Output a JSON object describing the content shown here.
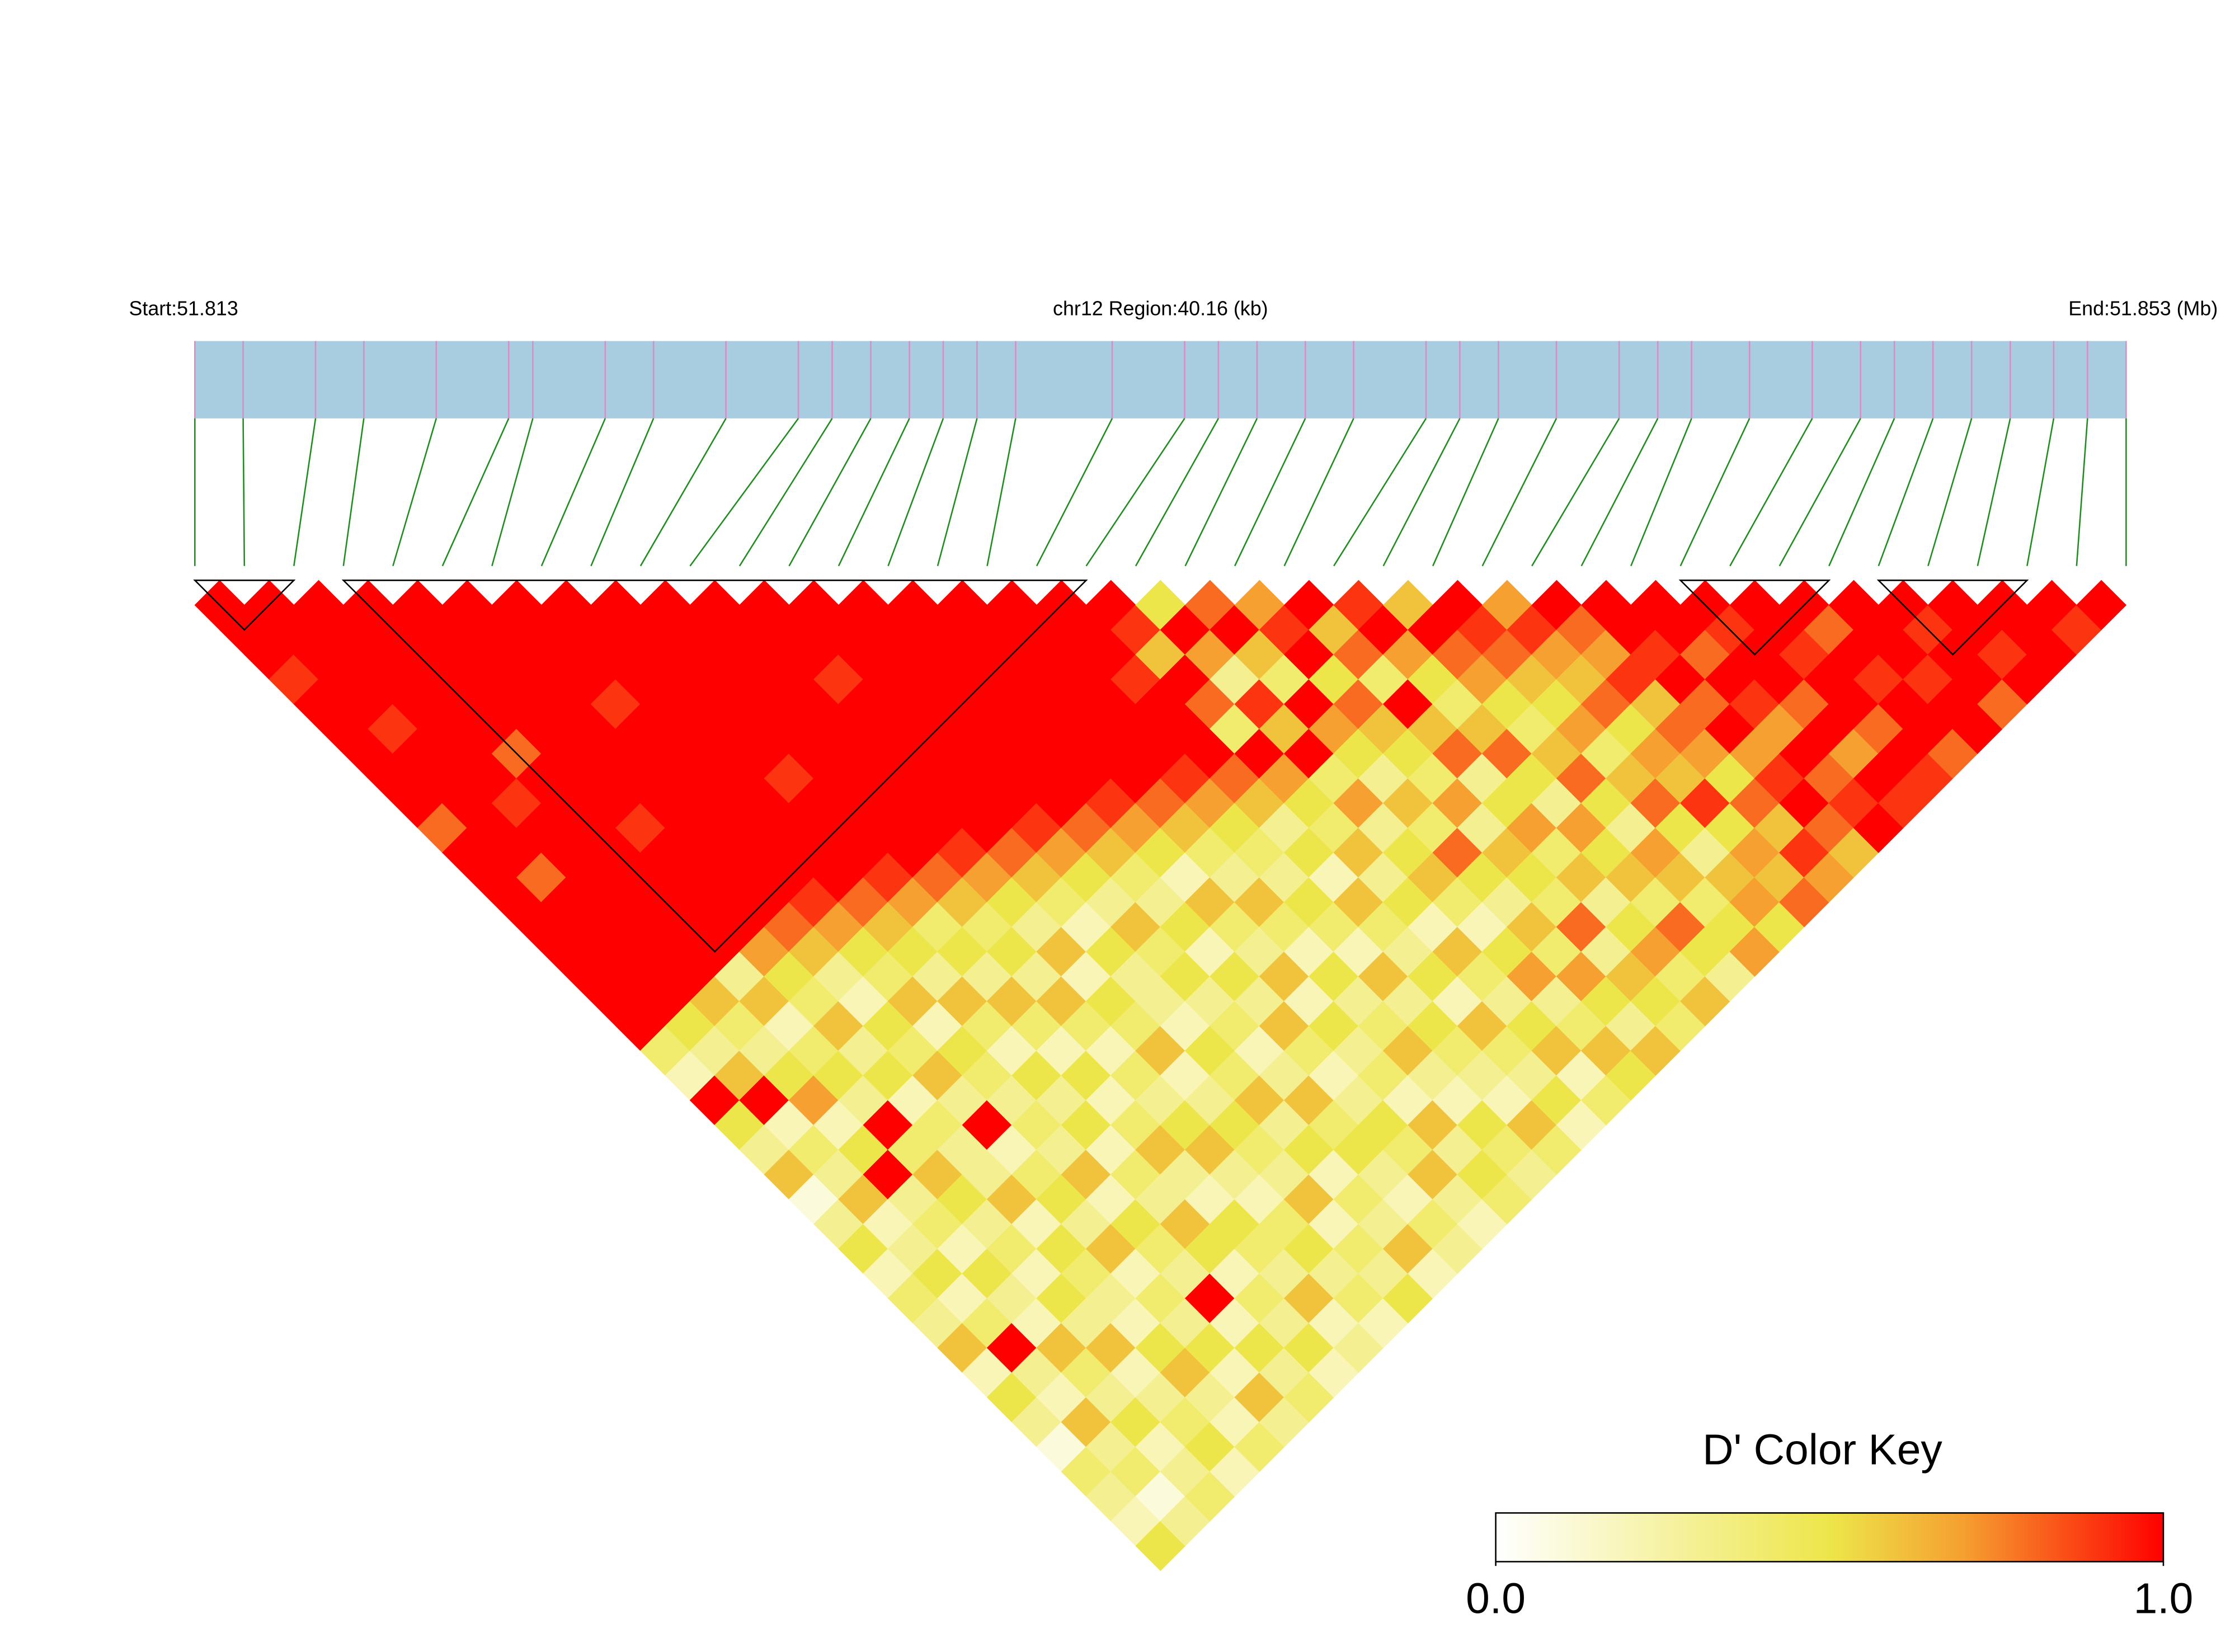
{
  "chart_data": {
    "type": "ld_heatmap",
    "start_label": "Start:51.813",
    "region_label": "chr12 Region:40.16 (kb)",
    "end_label": "End:51.853 (Mb)",
    "xlim": [
      51.813,
      51.853
    ],
    "bar_color": "#a8cde0",
    "marker_color": "#d98cc8",
    "link_color": "#1e8c1e",
    "block_color": "#000000",
    "positions": [
      51.813,
      51.814,
      51.8155,
      51.8165,
      51.818,
      51.8195,
      51.82,
      51.8215,
      51.8225,
      51.824,
      51.8255,
      51.8262,
      51.827,
      51.8278,
      51.8285,
      51.8292,
      51.83,
      51.832,
      51.8335,
      51.8342,
      51.835,
      51.836,
      51.837,
      51.8385,
      51.8392,
      51.84,
      51.8412,
      51.8425,
      51.8433,
      51.844,
      51.8452,
      51.8465,
      51.8475,
      51.8482,
      51.849,
      51.8498,
      51.8506,
      51.8515,
      51.8522,
      51.853
    ],
    "blocks": [
      [
        0,
        2
      ],
      [
        3,
        18
      ],
      [
        30,
        33
      ],
      [
        34,
        37
      ]
    ],
    "dprime": [
      [
        1,
        1,
        1,
        0.9,
        1,
        1,
        1,
        1,
        1,
        0.8,
        1,
        1,
        1,
        1,
        1,
        1,
        1,
        1,
        0.4,
        0.2,
        1,
        0.5,
        0.3,
        0.6,
        0.1,
        0.3,
        0.5,
        0.2,
        0.4,
        0.3,
        0.6,
        0.2,
        0.5,
        0.3,
        0.1,
        0.4,
        0.3,
        0.2,
        0.5
      ],
      [
        1,
        1,
        1,
        1,
        1,
        0.9,
        1,
        1,
        1,
        1,
        1,
        0.8,
        1,
        1,
        1,
        1,
        1,
        0.5,
        0.3,
        0.6,
        1,
        0.2,
        0.4,
        0.3,
        0.6,
        0.2,
        0.3,
        0.5,
        0.2,
        0.4,
        1,
        0.3,
        0.2,
        0.6,
        0.3,
        0.4,
        0.1,
        0.3
      ],
      [
        1,
        1,
        1,
        1,
        1,
        1,
        1,
        1,
        0.9,
        1,
        1,
        1,
        1,
        1,
        1,
        1,
        0.6,
        0.4,
        0.3,
        0.5,
        0.7,
        0.2,
        0.5,
        1,
        0.3,
        0.4,
        0.2,
        0.5,
        0.3,
        0.2,
        0.6,
        0.4,
        0.3,
        0.5,
        0.2,
        0.3,
        0.4
      ],
      [
        1,
        1,
        1,
        1,
        1,
        1,
        0.8,
        1,
        1,
        1,
        1,
        1,
        1,
        1,
        1,
        0.3,
        0.6,
        0.2,
        0.4,
        0.5,
        0.3,
        1,
        0.4,
        0.6,
        0.5,
        0.3,
        0.4,
        0.2,
        0.5,
        0.3,
        0.6,
        0.2,
        0.3,
        0.4,
        0.5,
        0.2
      ],
      [
        1,
        1,
        1,
        1,
        1,
        1,
        1,
        1,
        1,
        0.9,
        1,
        1,
        1,
        1,
        0.7,
        0.5,
        0.4,
        0.6,
        0.3,
        0.5,
        0.2,
        0.4,
        0.3,
        0.3,
        0.6,
        0.2,
        0.5,
        0.4,
        0.3,
        0.2,
        0.5,
        0.6,
        0.3,
        0.2,
        0.4
      ],
      [
        1,
        1,
        1,
        1,
        1,
        1,
        1,
        1,
        1,
        1,
        1,
        1,
        1,
        0.8,
        0.6,
        0.3,
        0.2,
        0.5,
        0.4,
        0.6,
        0.3,
        1,
        0.2,
        0.4,
        0.5,
        0.3,
        0.6,
        0.2,
        0.4,
        0.3,
        0.5,
        0.2,
        0.6,
        0.3
      ],
      [
        1,
        1,
        1,
        1,
        0.9,
        1,
        1,
        1,
        1,
        1,
        1,
        1,
        0.9,
        0.7,
        0.5,
        0.4,
        0.6,
        0.2,
        0.5,
        0.4,
        0.3,
        0.4,
        0.3,
        0.6,
        0.2,
        0.5,
        0.4,
        0.3,
        1,
        0.2,
        0.5,
        0.3,
        0.4
      ],
      [
        1,
        1,
        1,
        1,
        1,
        1,
        1,
        1,
        1,
        1,
        1,
        1,
        0.8,
        0.6,
        0.5,
        0.3,
        0.6,
        0.4,
        0.2,
        0.5,
        0.3,
        0.5,
        0.2,
        0.4,
        0.3,
        0.6,
        0.5,
        0.2,
        0.4,
        0.3,
        0.5,
        0.2
      ],
      [
        1,
        1,
        1,
        1,
        1,
        1,
        1,
        0.9,
        1,
        1,
        1,
        0.9,
        0.7,
        0.4,
        0.5,
        0.3,
        0.6,
        0.4,
        0.2,
        0.5,
        0.2,
        0.4,
        0.6,
        0.3,
        0.2,
        0.5,
        0.4,
        0.3,
        0.6,
        0.2,
        0.3
      ],
      [
        1,
        1,
        1,
        1,
        1,
        1,
        1,
        1,
        1,
        1,
        1,
        0.8,
        0.6,
        0.4,
        0.5,
        0.3,
        0.6,
        0.4,
        0.2,
        0.4,
        0.3,
        0.5,
        0.6,
        0.3,
        0.2,
        0.4,
        0.5,
        0.3,
        0.4,
        0.2
      ],
      [
        1,
        1,
        1,
        1,
        1,
        1,
        1,
        1,
        1,
        1,
        0.9,
        0.7,
        0.5,
        0.3,
        0.6,
        0.2,
        0.5,
        0.4,
        0.6,
        0.2,
        0.3,
        0.5,
        0.4,
        0.3,
        0.6,
        0.2,
        0.4,
        0.3,
        0.5
      ],
      [
        1,
        1,
        1,
        0.9,
        1,
        1,
        1,
        1,
        1,
        1,
        0.8,
        0.6,
        0.4,
        0.2,
        0.5,
        0.3,
        0.3,
        0.2,
        0.5,
        0.4,
        0.6,
        0.3,
        0.5,
        0.2,
        0.4,
        0.3,
        0.6,
        0.2
      ],
      [
        1,
        1,
        1,
        1,
        1,
        1,
        1,
        1,
        1,
        0.9,
        0.7,
        0.5,
        0.3,
        0.6,
        0.4,
        0.5,
        0.3,
        0.4,
        0.2,
        0.3,
        0.6,
        0.4,
        0.5,
        0.3,
        0.2,
        0.4,
        0.3
      ],
      [
        1,
        1,
        1,
        1,
        1,
        1,
        1,
        1,
        1,
        0.8,
        0.6,
        0.4,
        0.3,
        0.5,
        0.2,
        0.5,
        0.3,
        0.6,
        0.4,
        0.2,
        0.3,
        0.5,
        0.4,
        0.6,
        0.3,
        0.2
      ],
      [
        1,
        1,
        1,
        1,
        1,
        1,
        1,
        1,
        0.9,
        0.7,
        0.5,
        0.2,
        0.6,
        0.4,
        0.3,
        0.6,
        0.2,
        0.5,
        0.3,
        0.4,
        0.2,
        0.6,
        0.3,
        0.5,
        0.4
      ],
      [
        1,
        1,
        1,
        1,
        1,
        1,
        1,
        1,
        0.8,
        0.6,
        0.4,
        0.3,
        0.6,
        0.4,
        0.2,
        0.5,
        0.3,
        0.4,
        0.6,
        0.3,
        0.2,
        0.5,
        0.4,
        0.3
      ],
      [
        1,
        1,
        1,
        1,
        1,
        1,
        1,
        0.9,
        0.7,
        0.5,
        0.4,
        0.3,
        0.5,
        0.4,
        0.2,
        0.6,
        0.3,
        0.5,
        0.4,
        0.3,
        0.2,
        0.6,
        0.4
      ],
      [
        1,
        1,
        1,
        0.9,
        1,
        1,
        1,
        0.8,
        0.6,
        0.3,
        0.5,
        0.2,
        0.6,
        0.4,
        0.3,
        0.5,
        0.2,
        0.6,
        0.4,
        0.3,
        0.5,
        0.2
      ],
      [
        1,
        0.9,
        0.6,
        1,
        0.8,
        0.4,
        1,
        0.7,
        0.5,
        0.4,
        0.6,
        0.3,
        0.5,
        0.2,
        0.6,
        0.4,
        0.3,
        0.5,
        0.6,
        0.2,
        0.4
      ],
      [
        0.5,
        1,
        0.7,
        0.3,
        0.9,
        0.6,
        1,
        0.4,
        0.7,
        0.3,
        0.5,
        0.6,
        0.4,
        0.2,
        0.5,
        0.7,
        0.3,
        0.4,
        0.6,
        0.5
      ],
      [
        0.8,
        1,
        0.6,
        0.4,
        1,
        0.7,
        0.5,
        0.3,
        0.6,
        0.4,
        0.8,
        0.5,
        0.3,
        0.6,
        0.4,
        0.7,
        0.5,
        0.3,
        0.6
      ],
      [
        0.7,
        0.9,
        1,
        0.5,
        0.8,
        0.6,
        0.5,
        0.4,
        0.7,
        0.3,
        0.6,
        0.5,
        0.4,
        0.8,
        0.3,
        0.6,
        0.5,
        0.4
      ],
      [
        1,
        0.6,
        0.8,
        0.4,
        1,
        0.6,
        0.8,
        0.3,
        0.5,
        0.7,
        0.4,
        0.6,
        0.3,
        0.5,
        0.7,
        0.4,
        0.6
      ],
      [
        0.9,
        1,
        0.7,
        0.5,
        0.4,
        0.6,
        0.8,
        0.5,
        0.3,
        0.7,
        0.5,
        0.6,
        0.4,
        0.8,
        0.5,
        0.3
      ],
      [
        0.6,
        1,
        0.8,
        0.7,
        0.5,
        0.4,
        0.6,
        0.8,
        0.5,
        0.3,
        0.7,
        0.6,
        0.4,
        0.5,
        0.7
      ],
      [
        1,
        0.9,
        0.8,
        0.6,
        0.5,
        0.7,
        0.4,
        0.6,
        0.8,
        0.5,
        0.3,
        0.6,
        0.7,
        0.5
      ],
      [
        0.7,
        0.9,
        0.7,
        0.6,
        0.8,
        0.5,
        0.7,
        0.6,
        0.9,
        0.5,
        0.7,
        0.6,
        0.8
      ],
      [
        1,
        0.8,
        0.7,
        0.9,
        0.6,
        0.8,
        0.7,
        0.5,
        0.8,
        0.6,
        0.9,
        0.7
      ],
      [
        1,
        1,
        0.9,
        1,
        0.8,
        1,
        0.7,
        0.9,
        1,
        0.8,
        0.6
      ],
      [
        1,
        1,
        0.8,
        1,
        0.9,
        0.7,
        1,
        0.8,
        0.9,
        1
      ],
      [
        1,
        0.9,
        1,
        1,
        0.8,
        1,
        0.7,
        1,
        0.9
      ],
      [
        1,
        1,
        0.9,
        1,
        1,
        0.8,
        1,
        0.9
      ],
      [
        1,
        0.8,
        1,
        0.9,
        1,
        1,
        0.8
      ],
      [
        1,
        1,
        1,
        0.9,
        1,
        1
      ],
      [
        1,
        0.9,
        1,
        1,
        0.8
      ],
      [
        1,
        1,
        0.9,
        1
      ],
      [
        1,
        1,
        1
      ],
      [
        1,
        0.9
      ],
      [
        1
      ]
    ],
    "color_key": {
      "title": "D' Color Key",
      "lim": [
        0,
        1
      ],
      "ticks": [
        {
          "value": 0,
          "label": "0.0"
        },
        {
          "value": 1,
          "label": "1.0"
        }
      ],
      "color_stops": [
        [
          0,
          "#ffffff"
        ],
        [
          0.5,
          "#ede64a"
        ],
        [
          0.7,
          "#f5a030"
        ],
        [
          1,
          "#ff0000"
        ]
      ]
    }
  }
}
